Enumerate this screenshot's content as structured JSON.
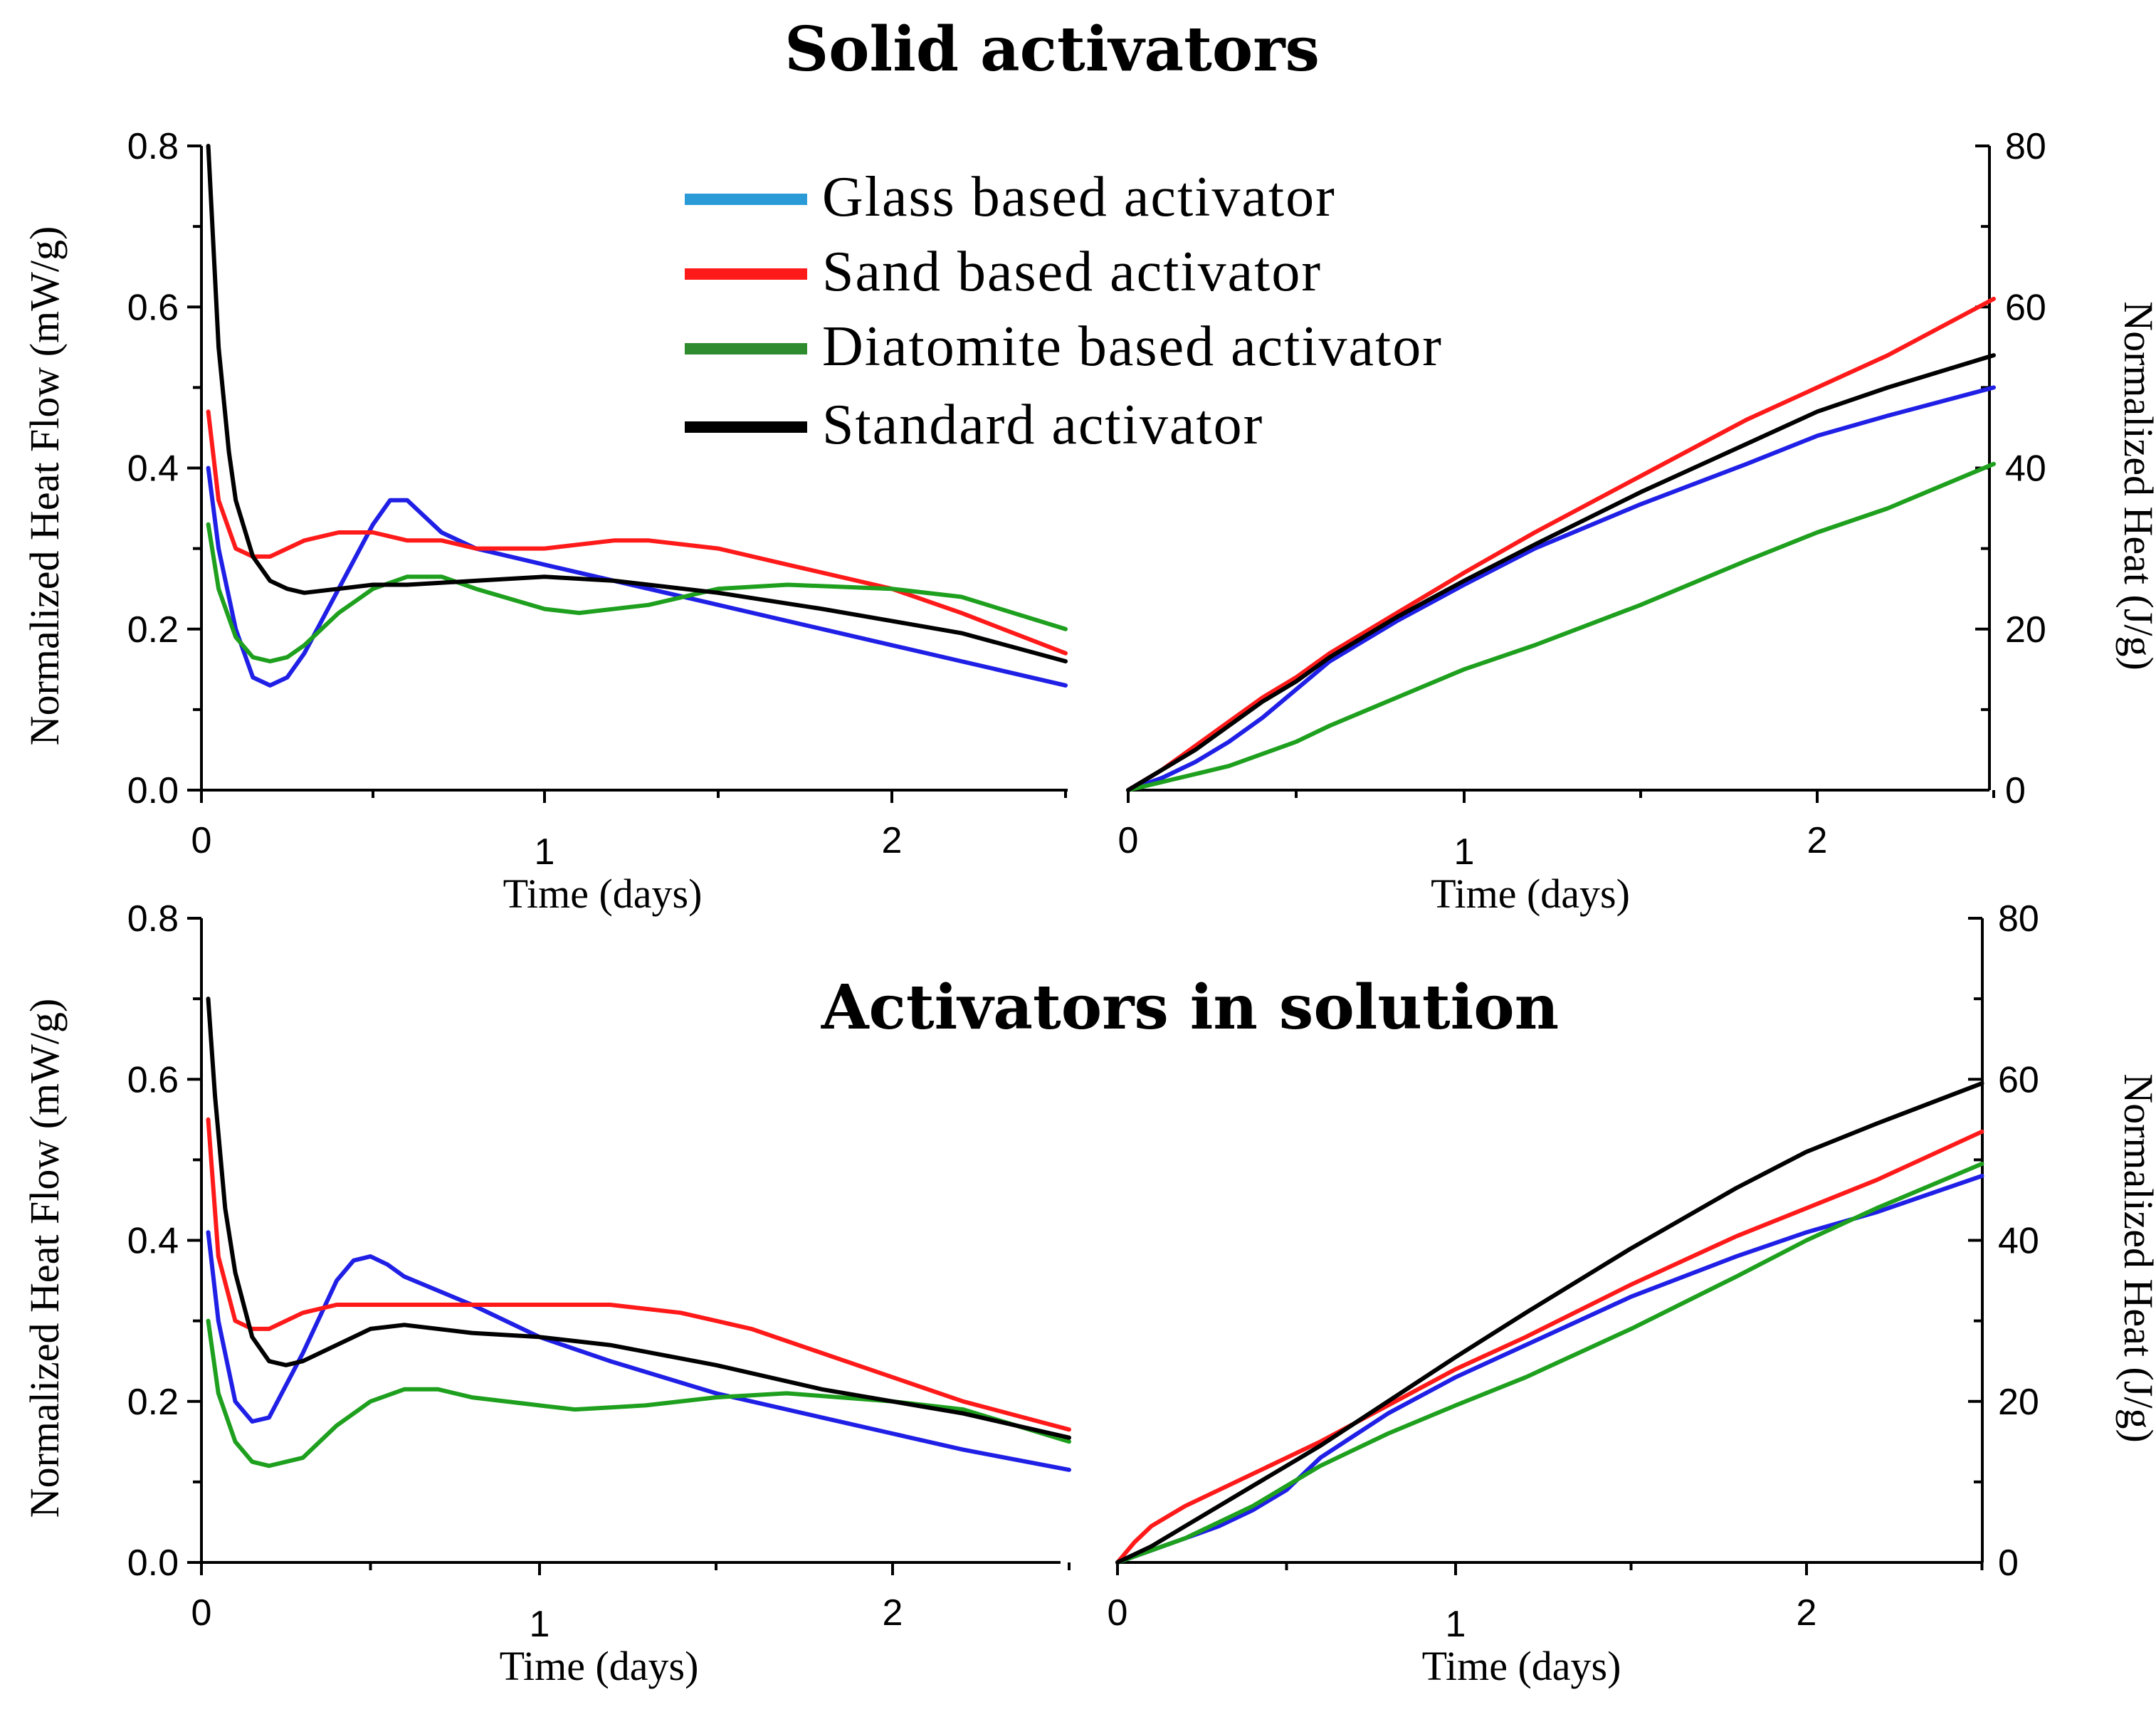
{
  "figure": {
    "top_title": "Solid activators",
    "bottom_title": "Activators in solution",
    "legend": [
      {
        "label": "Glass based activator",
        "color": "#2b9bd8"
      },
      {
        "label": "Sand based activator",
        "color": "#ff1a1a"
      },
      {
        "label": "Diatomite  based activator",
        "color": "#2e8b2e"
      },
      {
        "label": "Standard activator",
        "color": "#000000"
      }
    ]
  },
  "chart_data": [
    {
      "type": "line",
      "title": "Solid activators",
      "xlabel": "Time (days)",
      "ylabel": "Normalized Heat Flow (mW/g)",
      "xlim": [
        0,
        2.5
      ],
      "ylim": [
        0,
        0.8
      ],
      "xticks": [
        "0",
        "1",
        "2"
      ],
      "yticks": [
        "0.0",
        "0.2",
        "0.4",
        "0.6",
        "0.8"
      ],
      "series": [
        {
          "name": "Glass based activator",
          "color": "#1f1fe6",
          "x": [
            0.02,
            0.05,
            0.1,
            0.15,
            0.2,
            0.25,
            0.3,
            0.4,
            0.5,
            0.55,
            0.6,
            0.65,
            0.7,
            0.8,
            1.0,
            1.2,
            1.5,
            1.8,
            2.0,
            2.2,
            2.5
          ],
          "y": [
            0.4,
            0.3,
            0.2,
            0.14,
            0.13,
            0.14,
            0.17,
            0.25,
            0.33,
            0.36,
            0.36,
            0.34,
            0.32,
            0.3,
            0.28,
            0.26,
            0.23,
            0.2,
            0.18,
            0.16,
            0.13
          ]
        },
        {
          "name": "Sand based activator",
          "color": "#ff1a1a",
          "x": [
            0.02,
            0.05,
            0.1,
            0.15,
            0.2,
            0.25,
            0.3,
            0.4,
            0.5,
            0.6,
            0.7,
            0.8,
            1.0,
            1.2,
            1.3,
            1.5,
            1.7,
            2.0,
            2.2,
            2.5
          ],
          "y": [
            0.47,
            0.36,
            0.3,
            0.29,
            0.29,
            0.3,
            0.31,
            0.32,
            0.32,
            0.31,
            0.31,
            0.3,
            0.3,
            0.31,
            0.31,
            0.3,
            0.28,
            0.25,
            0.22,
            0.17
          ]
        },
        {
          "name": "Diatomite based activator",
          "color": "#1ea01e",
          "x": [
            0.02,
            0.05,
            0.1,
            0.15,
            0.2,
            0.25,
            0.3,
            0.4,
            0.5,
            0.6,
            0.7,
            0.8,
            1.0,
            1.1,
            1.3,
            1.5,
            1.7,
            2.0,
            2.2,
            2.5
          ],
          "y": [
            0.33,
            0.25,
            0.19,
            0.165,
            0.16,
            0.165,
            0.18,
            0.22,
            0.25,
            0.265,
            0.265,
            0.25,
            0.225,
            0.22,
            0.23,
            0.25,
            0.255,
            0.25,
            0.24,
            0.2
          ]
        },
        {
          "name": "Standard activator",
          "color": "#000000",
          "x": [
            0.02,
            0.05,
            0.08,
            0.1,
            0.15,
            0.2,
            0.25,
            0.3,
            0.4,
            0.5,
            0.6,
            0.8,
            1.0,
            1.2,
            1.5,
            1.8,
            2.0,
            2.2,
            2.5
          ],
          "y": [
            0.8,
            0.55,
            0.42,
            0.36,
            0.29,
            0.26,
            0.25,
            0.245,
            0.25,
            0.255,
            0.255,
            0.26,
            0.265,
            0.26,
            0.245,
            0.225,
            0.21,
            0.195,
            0.16
          ]
        }
      ]
    },
    {
      "type": "line",
      "title": "Solid activators",
      "xlabel": "Time (days)",
      "ylabel": "Normalized Heat (J/g)",
      "xlim": [
        0,
        2.5
      ],
      "ylim": [
        0,
        80
      ],
      "xticks": [
        "0",
        "1",
        "2"
      ],
      "yticks": [
        "0",
        "20",
        "40",
        "60",
        "80"
      ],
      "series": [
        {
          "name": "Glass based activator",
          "color": "#1f1fe6",
          "x": [
            0,
            0.1,
            0.2,
            0.3,
            0.4,
            0.5,
            0.6,
            0.8,
            1.0,
            1.2,
            1.5,
            1.8,
            2.0,
            2.2,
            2.5
          ],
          "y": [
            0,
            1.5,
            3.5,
            6,
            9,
            12.5,
            16,
            21,
            25.5,
            30,
            35.5,
            40.5,
            44,
            46.5,
            50
          ]
        },
        {
          "name": "Sand based activator",
          "color": "#ff1a1a",
          "x": [
            0,
            0.1,
            0.2,
            0.3,
            0.4,
            0.5,
            0.6,
            0.8,
            1.0,
            1.2,
            1.5,
            1.8,
            2.0,
            2.2,
            2.5
          ],
          "y": [
            0,
            2.5,
            5.5,
            8.5,
            11.5,
            14,
            17,
            22,
            27,
            32,
            39,
            46,
            50,
            54,
            61
          ]
        },
        {
          "name": "Diatomite based activator",
          "color": "#1ea01e",
          "x": [
            0,
            0.1,
            0.2,
            0.3,
            0.4,
            0.5,
            0.6,
            0.8,
            1.0,
            1.2,
            1.5,
            1.8,
            2.0,
            2.2,
            2.5
          ],
          "y": [
            0,
            1,
            2,
            3,
            4.5,
            6,
            8,
            11.5,
            15,
            18,
            23,
            28.5,
            32,
            35,
            40.5
          ]
        },
        {
          "name": "Standard activator",
          "color": "#000000",
          "x": [
            0,
            0.1,
            0.2,
            0.3,
            0.4,
            0.5,
            0.6,
            0.8,
            1.0,
            1.2,
            1.5,
            1.8,
            2.0,
            2.2,
            2.5
          ],
          "y": [
            0,
            2.5,
            5,
            8,
            11,
            13.5,
            16.5,
            21.5,
            26,
            30.5,
            37,
            43,
            47,
            50,
            54
          ]
        }
      ]
    },
    {
      "type": "line",
      "title": "Activators in solution",
      "xlabel": "Time (days)",
      "ylabel": "Normalized Heat Flow (mW/g)",
      "xlim": [
        0,
        2.5
      ],
      "ylim": [
        0,
        0.8
      ],
      "xticks": [
        "0",
        "1",
        "2"
      ],
      "yticks": [
        "0.0",
        "0.2",
        "0.4",
        "0.6",
        "0.8"
      ],
      "series": [
        {
          "name": "Glass based activator",
          "color": "#1f1fe6",
          "x": [
            0.02,
            0.05,
            0.1,
            0.15,
            0.2,
            0.3,
            0.4,
            0.45,
            0.5,
            0.55,
            0.6,
            0.8,
            1.0,
            1.2,
            1.5,
            1.8,
            2.0,
            2.2,
            2.5
          ],
          "y": [
            0.41,
            0.3,
            0.2,
            0.175,
            0.18,
            0.26,
            0.35,
            0.375,
            0.38,
            0.37,
            0.355,
            0.32,
            0.28,
            0.25,
            0.21,
            0.18,
            0.16,
            0.14,
            0.115
          ]
        },
        {
          "name": "Sand based activator",
          "color": "#ff1a1a",
          "x": [
            0.02,
            0.05,
            0.1,
            0.15,
            0.2,
            0.25,
            0.3,
            0.4,
            0.6,
            0.8,
            1.0,
            1.2,
            1.4,
            1.6,
            1.8,
            2.0,
            2.2,
            2.5
          ],
          "y": [
            0.55,
            0.38,
            0.3,
            0.29,
            0.29,
            0.3,
            0.31,
            0.32,
            0.32,
            0.32,
            0.32,
            0.32,
            0.31,
            0.29,
            0.26,
            0.23,
            0.2,
            0.165
          ]
        },
        {
          "name": "Diatomite based activator",
          "color": "#1ea01e",
          "x": [
            0.02,
            0.05,
            0.1,
            0.15,
            0.2,
            0.3,
            0.4,
            0.5,
            0.6,
            0.7,
            0.8,
            1.0,
            1.1,
            1.3,
            1.5,
            1.7,
            2.0,
            2.2,
            2.5
          ],
          "y": [
            0.3,
            0.21,
            0.15,
            0.125,
            0.12,
            0.13,
            0.17,
            0.2,
            0.215,
            0.215,
            0.205,
            0.195,
            0.19,
            0.195,
            0.205,
            0.21,
            0.2,
            0.19,
            0.15
          ]
        },
        {
          "name": "Standard activator",
          "color": "#000000",
          "x": [
            0.02,
            0.04,
            0.07,
            0.1,
            0.15,
            0.2,
            0.25,
            0.3,
            0.4,
            0.5,
            0.6,
            0.8,
            1.0,
            1.2,
            1.5,
            1.8,
            2.0,
            2.2,
            2.5
          ],
          "y": [
            0.7,
            0.58,
            0.44,
            0.36,
            0.28,
            0.25,
            0.245,
            0.25,
            0.27,
            0.29,
            0.295,
            0.285,
            0.28,
            0.27,
            0.245,
            0.215,
            0.2,
            0.185,
            0.155
          ]
        }
      ]
    },
    {
      "type": "line",
      "title": "Activators in solution",
      "xlabel": "Time (days)",
      "ylabel": "Normalized Heat (J/g)",
      "xlim": [
        0,
        2.5
      ],
      "ylim": [
        0,
        80
      ],
      "xticks": [
        "0",
        "1",
        "2"
      ],
      "yticks": [
        "0",
        "20",
        "40",
        "60",
        "80"
      ],
      "series": [
        {
          "name": "Glass based activator",
          "color": "#1f1fe6",
          "x": [
            0,
            0.1,
            0.2,
            0.3,
            0.4,
            0.5,
            0.6,
            0.8,
            1.0,
            1.2,
            1.5,
            1.8,
            2.0,
            2.2,
            2.5
          ],
          "y": [
            0,
            1.5,
            3,
            4.5,
            6.5,
            9,
            13,
            18.5,
            23,
            27,
            33,
            38,
            41,
            43.5,
            48
          ]
        },
        {
          "name": "Sand based activator",
          "color": "#ff1a1a",
          "x": [
            0,
            0.05,
            0.1,
            0.2,
            0.3,
            0.4,
            0.5,
            0.6,
            0.8,
            1.0,
            1.2,
            1.5,
            1.8,
            2.0,
            2.2,
            2.5
          ],
          "y": [
            0,
            2.5,
            4.5,
            7,
            9,
            11,
            13,
            15,
            19.5,
            24,
            28,
            34.5,
            40.5,
            44,
            47.5,
            53.5
          ]
        },
        {
          "name": "Diatomite based activator",
          "color": "#1ea01e",
          "x": [
            0,
            0.1,
            0.2,
            0.3,
            0.4,
            0.5,
            0.6,
            0.8,
            1.0,
            1.2,
            1.5,
            1.8,
            2.0,
            2.2,
            2.5
          ],
          "y": [
            0,
            1.5,
            3,
            5,
            7,
            9.5,
            12,
            16,
            19.5,
            23,
            29,
            35.5,
            40,
            44,
            49.5
          ]
        },
        {
          "name": "Standard activator",
          "color": "#000000",
          "x": [
            0,
            0.1,
            0.2,
            0.3,
            0.4,
            0.5,
            0.6,
            0.8,
            1.0,
            1.2,
            1.5,
            1.8,
            2.0,
            2.2,
            2.5
          ],
          "y": [
            0,
            2,
            4.5,
            7,
            9.5,
            12,
            14.5,
            20,
            25.5,
            31,
            39,
            46.5,
            51,
            54.5,
            59.5
          ]
        }
      ]
    }
  ]
}
